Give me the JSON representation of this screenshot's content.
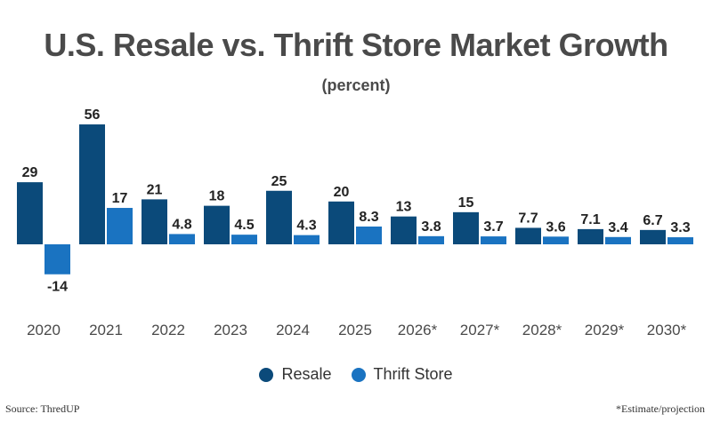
{
  "colors": {
    "resale": "#0b4a7a",
    "thrift": "#1a73c1",
    "text": "#4a4a4a"
  },
  "footer": {
    "source": "Source: ThredUP",
    "note": "*Estimate/projection"
  },
  "chart_data": {
    "type": "bar",
    "title": "U.S. Resale vs. Thrift Store Market Growth",
    "subtitle": "(percent)",
    "xlabel": "",
    "ylabel": "",
    "categories": [
      "2020",
      "2021",
      "2022",
      "2023",
      "2024",
      "2025",
      "2026*",
      "2027*",
      "2028*",
      "2029*",
      "2030*"
    ],
    "series": [
      {
        "name": "Resale",
        "values": [
          29,
          56,
          21,
          18,
          25,
          20,
          13,
          15,
          7.7,
          7.1,
          6.7
        ]
      },
      {
        "name": "Thrift Store",
        "values": [
          -14,
          17,
          4.8,
          4.5,
          4.3,
          8.3,
          3.8,
          3.7,
          3.6,
          3.4,
          3.3
        ]
      }
    ],
    "ylim": [
      -14,
      56
    ],
    "grid": false,
    "legend": "bottom-center"
  }
}
